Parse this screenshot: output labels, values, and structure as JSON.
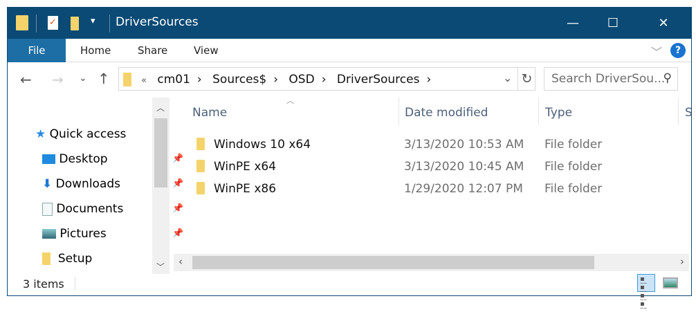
{
  "window": {
    "title": "DriverSources",
    "minimize": "—",
    "maximize": "☐",
    "close": "✕",
    "qat_dropdown": "▾"
  },
  "ribbon": {
    "tabs": [
      "File",
      "Home",
      "Share",
      "View"
    ],
    "expand": "﹀",
    "help": "?"
  },
  "address": {
    "overflow": "«",
    "crumbs": [
      "cm01",
      "Sources$",
      "OSD",
      "DriverSources"
    ],
    "sep": "›",
    "dropdown": "⌄",
    "refresh": "↻"
  },
  "nav_buttons": {
    "back": "←",
    "forward": "→",
    "recent": "⌄",
    "up": "↑"
  },
  "search": {
    "placeholder": "Search DriverSou...",
    "icon": "⚲"
  },
  "sidebar": {
    "items": [
      {
        "label": "Quick access",
        "icon": "star-icon",
        "pinned": false
      },
      {
        "label": "Desktop",
        "icon": "desktop-icon",
        "pinned": true
      },
      {
        "label": "Downloads",
        "icon": "download-icon",
        "pinned": true
      },
      {
        "label": "Documents",
        "icon": "documents-icon",
        "pinned": true
      },
      {
        "label": "Pictures",
        "icon": "pictures-icon",
        "pinned": true
      },
      {
        "label": "Setup",
        "icon": "folder-icon",
        "pinned": false
      }
    ]
  },
  "columns": [
    "Name",
    "Date modified",
    "Type",
    "S"
  ],
  "files": [
    {
      "name": "Windows 10 x64",
      "date": "3/13/2020 10:53 AM",
      "type": "File folder"
    },
    {
      "name": "WinPE x64",
      "date": "3/13/2020 10:45 AM",
      "type": "File folder"
    },
    {
      "name": "WinPE x86",
      "date": "1/29/2020 12:07 PM",
      "type": "File folder"
    }
  ],
  "status": {
    "count": "3 items"
  },
  "colors": {
    "titlebar": "#0a4a74",
    "file_tab": "#1c6ea4",
    "folder": "#f4d36b"
  }
}
